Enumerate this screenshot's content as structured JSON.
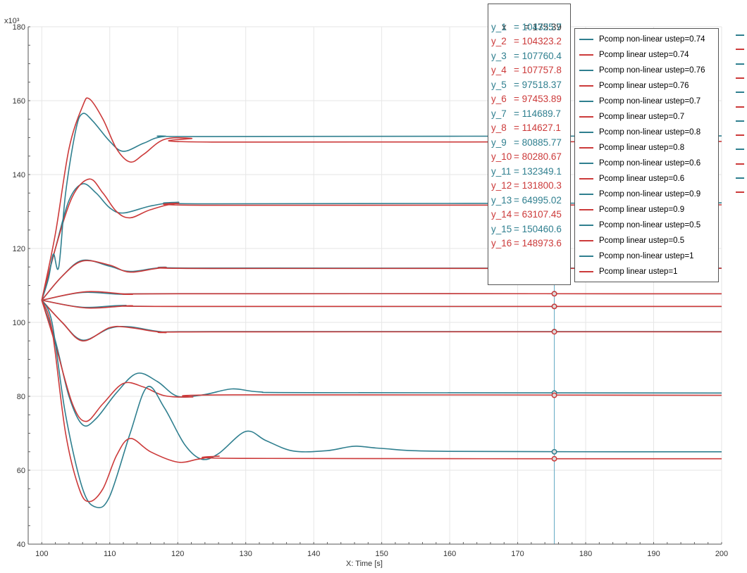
{
  "chart_data": {
    "type": "line",
    "xlabel": "X: Time [s]",
    "y_multiplier_label": "x10³",
    "xlim": [
      98,
      200
    ],
    "ylim": [
      40,
      180
    ],
    "x_ticks": [
      100,
      110,
      120,
      130,
      140,
      150,
      160,
      170,
      180,
      190,
      200
    ],
    "y_ticks": [
      40,
      60,
      80,
      100,
      120,
      140,
      160,
      180
    ],
    "grid": true,
    "legend_position": "top-right",
    "colors": {
      "non_linear": "#2f7f8f",
      "linear": "#cc3a3a",
      "cursor": "#5fa8c2"
    },
    "cursor": {
      "x_label": "x",
      "x_value": "= 175.39",
      "x": 175.39,
      "readouts": [
        {
          "name": "y_1",
          "value": "= 104325.7",
          "kind": "non_linear"
        },
        {
          "name": "y_2",
          "value": "= 104323.2",
          "kind": "linear"
        },
        {
          "name": "y_3",
          "value": "= 107760.4",
          "kind": "non_linear"
        },
        {
          "name": "y_4",
          "value": "= 107757.8",
          "kind": "linear"
        },
        {
          "name": "y_5",
          "value": "= 97518.37",
          "kind": "non_linear"
        },
        {
          "name": "y_6",
          "value": "= 97453.89",
          "kind": "linear"
        },
        {
          "name": "y_7",
          "value": "= 114689.7",
          "kind": "non_linear"
        },
        {
          "name": "y_8",
          "value": "= 114627.1",
          "kind": "linear"
        },
        {
          "name": "y_9",
          "value": "= 80885.77",
          "kind": "non_linear"
        },
        {
          "name": "y_10",
          "value": "= 80280.67",
          "kind": "linear"
        },
        {
          "name": "y_11",
          "value": "= 132349.1",
          "kind": "non_linear"
        },
        {
          "name": "y_12",
          "value": "= 131800.3",
          "kind": "linear"
        },
        {
          "name": "y_13",
          "value": "= 64995.02",
          "kind": "non_linear"
        },
        {
          "name": "y_14",
          "value": "= 63107.45",
          "kind": "linear"
        },
        {
          "name": "y_15",
          "value": "= 150460.6",
          "kind": "non_linear"
        },
        {
          "name": "y_16",
          "value": "= 148973.6",
          "kind": "linear"
        }
      ]
    },
    "series": [
      {
        "name": "Pcomp non-linear ustep=0.74",
        "kind": "non_linear",
        "amp": 104.326,
        "shape": [
          [
            100,
            106
          ],
          [
            106,
            104.1
          ],
          [
            112,
            104.6
          ],
          [
            120,
            104.33
          ],
          [
            200,
            104.326
          ]
        ]
      },
      {
        "name": "Pcomp linear ustep=0.74",
        "kind": "linear",
        "amp": 104.323,
        "shape": [
          [
            100,
            106
          ],
          [
            106.5,
            103.9
          ],
          [
            113,
            104.5
          ],
          [
            120,
            104.32
          ],
          [
            200,
            104.323
          ]
        ]
      },
      {
        "name": "Pcomp non-linear ustep=0.76",
        "kind": "non_linear",
        "amp": 107.76,
        "shape": [
          [
            100,
            106
          ],
          [
            106,
            108.1
          ],
          [
            112,
            107.6
          ],
          [
            120,
            107.77
          ],
          [
            200,
            107.76
          ]
        ]
      },
      {
        "name": "Pcomp linear ustep=0.76",
        "kind": "linear",
        "amp": 107.758,
        "shape": [
          [
            100,
            106
          ],
          [
            106.5,
            108.3
          ],
          [
            113,
            107.6
          ],
          [
            120,
            107.76
          ],
          [
            200,
            107.758
          ]
        ]
      },
      {
        "name": "Pcomp non-linear ustep=0.7",
        "kind": "non_linear",
        "amp": 97.518,
        "shape": [
          [
            100,
            106
          ],
          [
            103,
            100
          ],
          [
            106,
            95.2
          ],
          [
            110,
            98.4
          ],
          [
            113,
            98.8
          ],
          [
            118,
            97.4
          ],
          [
            125,
            97.5
          ],
          [
            200,
            97.518
          ]
        ]
      },
      {
        "name": "Pcomp linear ustep=0.7",
        "kind": "linear",
        "amp": 97.454,
        "shape": [
          [
            100,
            106
          ],
          [
            103,
            100
          ],
          [
            106,
            95.0
          ],
          [
            110,
            98.6
          ],
          [
            113,
            98.6
          ],
          [
            118,
            97.3
          ],
          [
            125,
            97.45
          ],
          [
            200,
            97.454
          ]
        ]
      },
      {
        "name": "Pcomp non-linear ustep=0.8",
        "kind": "non_linear",
        "amp": 114.69,
        "shape": [
          [
            100,
            106
          ],
          [
            103,
            112.5
          ],
          [
            106,
            116.8
          ],
          [
            110,
            115.2
          ],
          [
            113,
            113.8
          ],
          [
            118,
            114.9
          ],
          [
            125,
            114.7
          ],
          [
            200,
            114.69
          ]
        ]
      },
      {
        "name": "Pcomp linear ustep=0.8",
        "kind": "linear",
        "amp": 114.627,
        "shape": [
          [
            100,
            106
          ],
          [
            103,
            112.5
          ],
          [
            106,
            116.6
          ],
          [
            110,
            115.5
          ],
          [
            113,
            113.6
          ],
          [
            118,
            114.8
          ],
          [
            125,
            114.6
          ],
          [
            200,
            114.627
          ]
        ]
      },
      {
        "name": "Pcomp non-linear ustep=0.6",
        "kind": "non_linear",
        "amp": 80.886,
        "shape": [
          [
            100,
            106
          ],
          [
            102,
            95
          ],
          [
            104,
            80
          ],
          [
            106,
            72.3
          ],
          [
            108,
            74
          ],
          [
            111,
            81
          ],
          [
            114,
            86.2
          ],
          [
            117,
            84
          ],
          [
            120,
            80
          ],
          [
            124,
            80.5
          ],
          [
            128,
            82
          ],
          [
            132,
            81.2
          ],
          [
            140,
            81.0
          ],
          [
            200,
            80.886
          ]
        ]
      },
      {
        "name": "Pcomp linear ustep=0.6",
        "kind": "linear",
        "amp": 80.281,
        "shape": [
          [
            100,
            106
          ],
          [
            102,
            94
          ],
          [
            104.5,
            78
          ],
          [
            106.5,
            73.2
          ],
          [
            109,
            78
          ],
          [
            112,
            83.5
          ],
          [
            115,
            82.5
          ],
          [
            118,
            80.2
          ],
          [
            122,
            79.8
          ],
          [
            128,
            80.4
          ],
          [
            200,
            80.281
          ]
        ]
      },
      {
        "name": "Pcomp non-linear ustep=0.9",
        "kind": "non_linear",
        "amp": 132.349,
        "shape": [
          [
            100,
            106
          ],
          [
            102,
            120
          ],
          [
            104,
            133
          ],
          [
            106,
            137.5
          ],
          [
            108,
            135
          ],
          [
            110,
            131
          ],
          [
            112,
            129.6
          ],
          [
            116,
            131.5
          ],
          [
            120,
            132.5
          ],
          [
            125,
            132.1
          ],
          [
            200,
            132.349
          ]
        ]
      },
      {
        "name": "Pcomp linear ustep=0.9",
        "kind": "linear",
        "amp": 131.8,
        "shape": [
          [
            100,
            106
          ],
          [
            102,
            120
          ],
          [
            104.5,
            134
          ],
          [
            107,
            138.8
          ],
          [
            109,
            135
          ],
          [
            111,
            130
          ],
          [
            113,
            128.3
          ],
          [
            116,
            130.5
          ],
          [
            120,
            132.2
          ],
          [
            125,
            131.7
          ],
          [
            200,
            131.8
          ]
        ]
      },
      {
        "name": "Pcomp non-linear ustep=0.5",
        "kind": "non_linear",
        "amp": 64.995,
        "shape": [
          [
            100,
            106
          ],
          [
            101.5,
            100
          ],
          [
            103.5,
            75
          ],
          [
            106,
            55
          ],
          [
            108,
            50
          ],
          [
            110,
            53
          ],
          [
            113,
            70
          ],
          [
            115.5,
            82.5
          ],
          [
            118,
            77
          ],
          [
            121,
            67
          ],
          [
            123.5,
            63
          ],
          [
            126,
            64.5
          ],
          [
            130,
            70.5
          ],
          [
            133,
            68
          ],
          [
            137,
            65.2
          ],
          [
            142,
            65.3
          ],
          [
            146,
            66.5
          ],
          [
            150,
            65.9
          ],
          [
            160,
            65.1
          ],
          [
            200,
            64.995
          ]
        ]
      },
      {
        "name": "Pcomp linear ustep=0.5",
        "kind": "linear",
        "amp": 63.107,
        "shape": [
          [
            100,
            106
          ],
          [
            101.5,
            98
          ],
          [
            103.5,
            70
          ],
          [
            105.5,
            55
          ],
          [
            107,
            51.5
          ],
          [
            109,
            55
          ],
          [
            111,
            64
          ],
          [
            113,
            68.6
          ],
          [
            116,
            65
          ],
          [
            120,
            62.2
          ],
          [
            123,
            63
          ],
          [
            126,
            63.8
          ],
          [
            130,
            63.2
          ],
          [
            200,
            63.107
          ]
        ]
      },
      {
        "name": "Pcomp non-linear ustep=1",
        "kind": "non_linear",
        "amp": 150.461,
        "shape": [
          [
            100,
            106
          ],
          [
            101,
            112
          ],
          [
            101.7,
            118.5
          ],
          [
            102.5,
            115
          ],
          [
            103.5,
            135
          ],
          [
            105,
            152
          ],
          [
            106,
            156.5
          ],
          [
            107.5,
            154.5
          ],
          [
            110,
            149
          ],
          [
            112,
            146.3
          ],
          [
            115,
            148.5
          ],
          [
            118,
            150.3
          ],
          [
            125,
            150.3
          ],
          [
            200,
            150.461
          ]
        ]
      },
      {
        "name": "Pcomp linear ustep=1",
        "kind": "linear",
        "amp": 148.974,
        "shape": [
          [
            100,
            106
          ],
          [
            102,
            124
          ],
          [
            104,
            147
          ],
          [
            106,
            158.5
          ],
          [
            107,
            160.5
          ],
          [
            109,
            155
          ],
          [
            111,
            147
          ],
          [
            113,
            143.4
          ],
          [
            115,
            145.5
          ],
          [
            118,
            149.5
          ],
          [
            122,
            149.8
          ],
          [
            125,
            148.8
          ],
          [
            200,
            148.974
          ]
        ]
      }
    ]
  }
}
